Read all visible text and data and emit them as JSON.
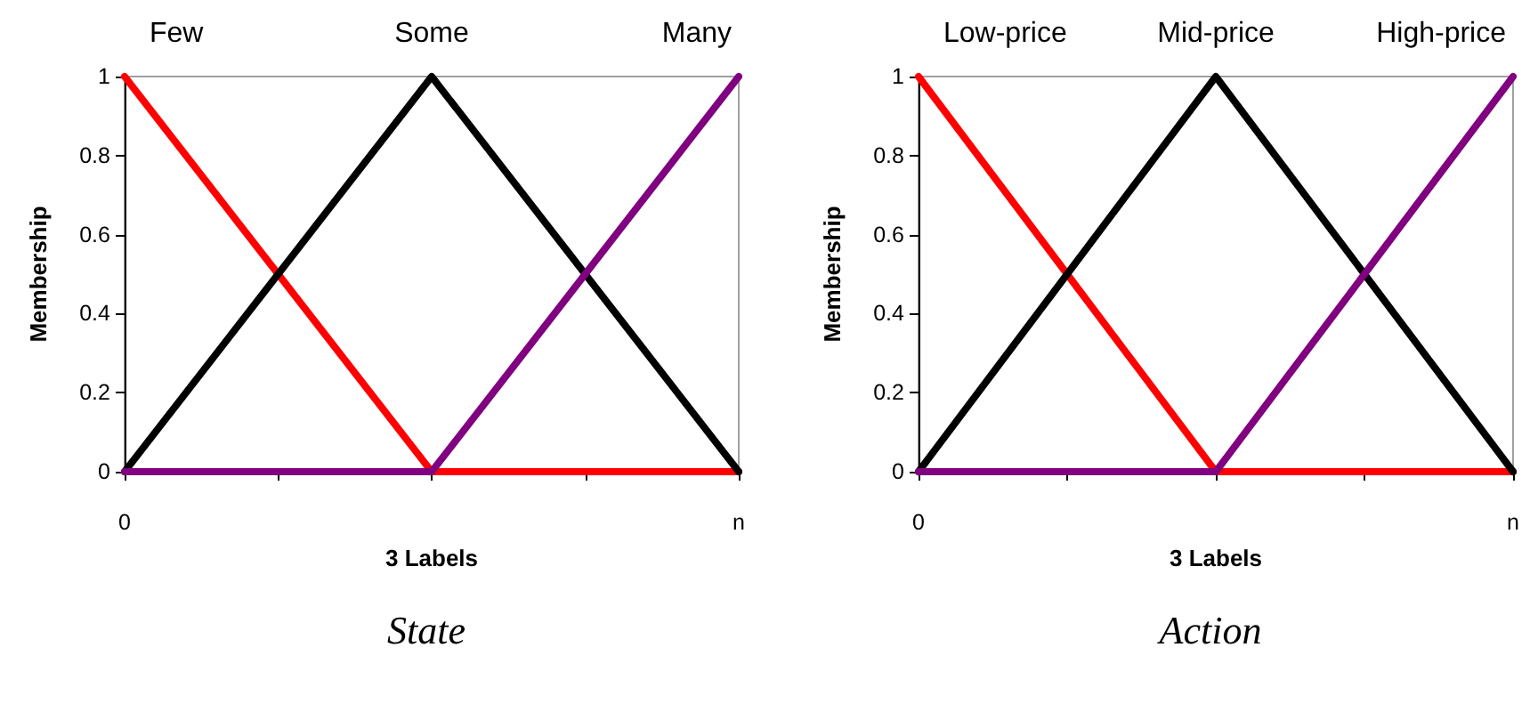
{
  "chart_data": [
    {
      "type": "line",
      "title": "State",
      "xlabel": "3 Labels",
      "ylabel": "Membership",
      "categories": [
        "0",
        null,
        null,
        null,
        "n"
      ],
      "series": [
        {
          "name": "Few",
          "color": "#ff0000",
          "values": [
            1,
            0.5,
            0,
            0,
            0
          ]
        },
        {
          "name": "Some",
          "color": "#000000",
          "values": [
            0,
            0.5,
            1,
            0.5,
            0
          ]
        },
        {
          "name": "Many",
          "color": "#800080",
          "values": [
            0,
            0,
            0,
            0.5,
            1
          ]
        }
      ],
      "ylim": [
        0,
        1
      ],
      "yticks": [
        0,
        0.2,
        0.4,
        0.6,
        0.8,
        1
      ],
      "grid": false,
      "marker": "none",
      "line_style": "solid"
    },
    {
      "type": "line",
      "title": "Action",
      "xlabel": "3 Labels",
      "ylabel": "Membership",
      "categories": [
        "0",
        null,
        null,
        null,
        "n"
      ],
      "series": [
        {
          "name": "Low-price",
          "color": "#ff0000",
          "values": [
            1,
            0.5,
            0,
            0,
            0
          ]
        },
        {
          "name": "Mid-price",
          "color": "#000000",
          "values": [
            0,
            0.5,
            1,
            0.5,
            0
          ]
        },
        {
          "name": "High-price",
          "color": "#800080",
          "values": [
            0,
            0,
            0,
            0.5,
            1
          ]
        }
      ],
      "ylim": [
        0,
        1
      ],
      "yticks": [
        0,
        0.2,
        0.4,
        0.6,
        0.8,
        1
      ],
      "grid": false,
      "marker": "none",
      "line_style": "solid"
    }
  ]
}
